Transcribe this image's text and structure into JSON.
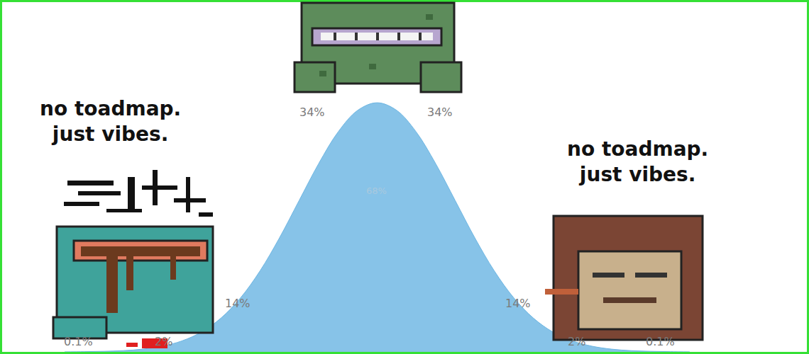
{
  "chart_data": {
    "type": "area",
    "x": [
      -4,
      -3.75,
      -3.5,
      -3.25,
      -3,
      -2.75,
      -2.5,
      -2.25,
      -2,
      -1.75,
      -1.5,
      -1.25,
      -1,
      -0.75,
      -0.5,
      -0.25,
      0,
      0.25,
      0.5,
      0.75,
      1,
      1.25,
      1.5,
      1.75,
      2,
      2.25,
      2.5,
      2.75,
      3,
      3.25,
      3.5,
      3.75,
      4
    ],
    "values": [
      0.0001,
      0.0004,
      0.0009,
      0.002,
      0.0044,
      0.0091,
      0.0175,
      0.0317,
      0.054,
      0.0863,
      0.1295,
      0.1826,
      0.242,
      0.3011,
      0.3521,
      0.3867,
      0.3989,
      0.3867,
      0.3521,
      0.3011,
      0.242,
      0.1826,
      0.1295,
      0.0863,
      0.054,
      0.0317,
      0.0175,
      0.0091,
      0.0044,
      0.002,
      0.0009,
      0.0004,
      0.0001
    ],
    "color": "#6db6e3",
    "xlim": [
      -4.8,
      5.5
    ],
    "xticks": [
      -3,
      -2,
      -1,
      0,
      1,
      2,
      3
    ],
    "ylim": [
      0,
      0.56
    ],
    "grid": true,
    "tick_labels": false,
    "band_labels": {
      "values": [
        0.1,
        2,
        14,
        34,
        34,
        14,
        2,
        0.1
      ],
      "value_labels": [
        "0.1%",
        "2%",
        "14%",
        "34%",
        "34%",
        "14%",
        "2%",
        "0.1%"
      ]
    },
    "inner_band": {
      "values": [
        68
      ],
      "value_labels": [
        "68%"
      ]
    },
    "annotations": [
      {
        "text": [
          "no toadmap.",
          "just vibes."
        ]
      },
      {
        "text": [
          "no toadmap.",
          "just vibes."
        ]
      }
    ]
  }
}
